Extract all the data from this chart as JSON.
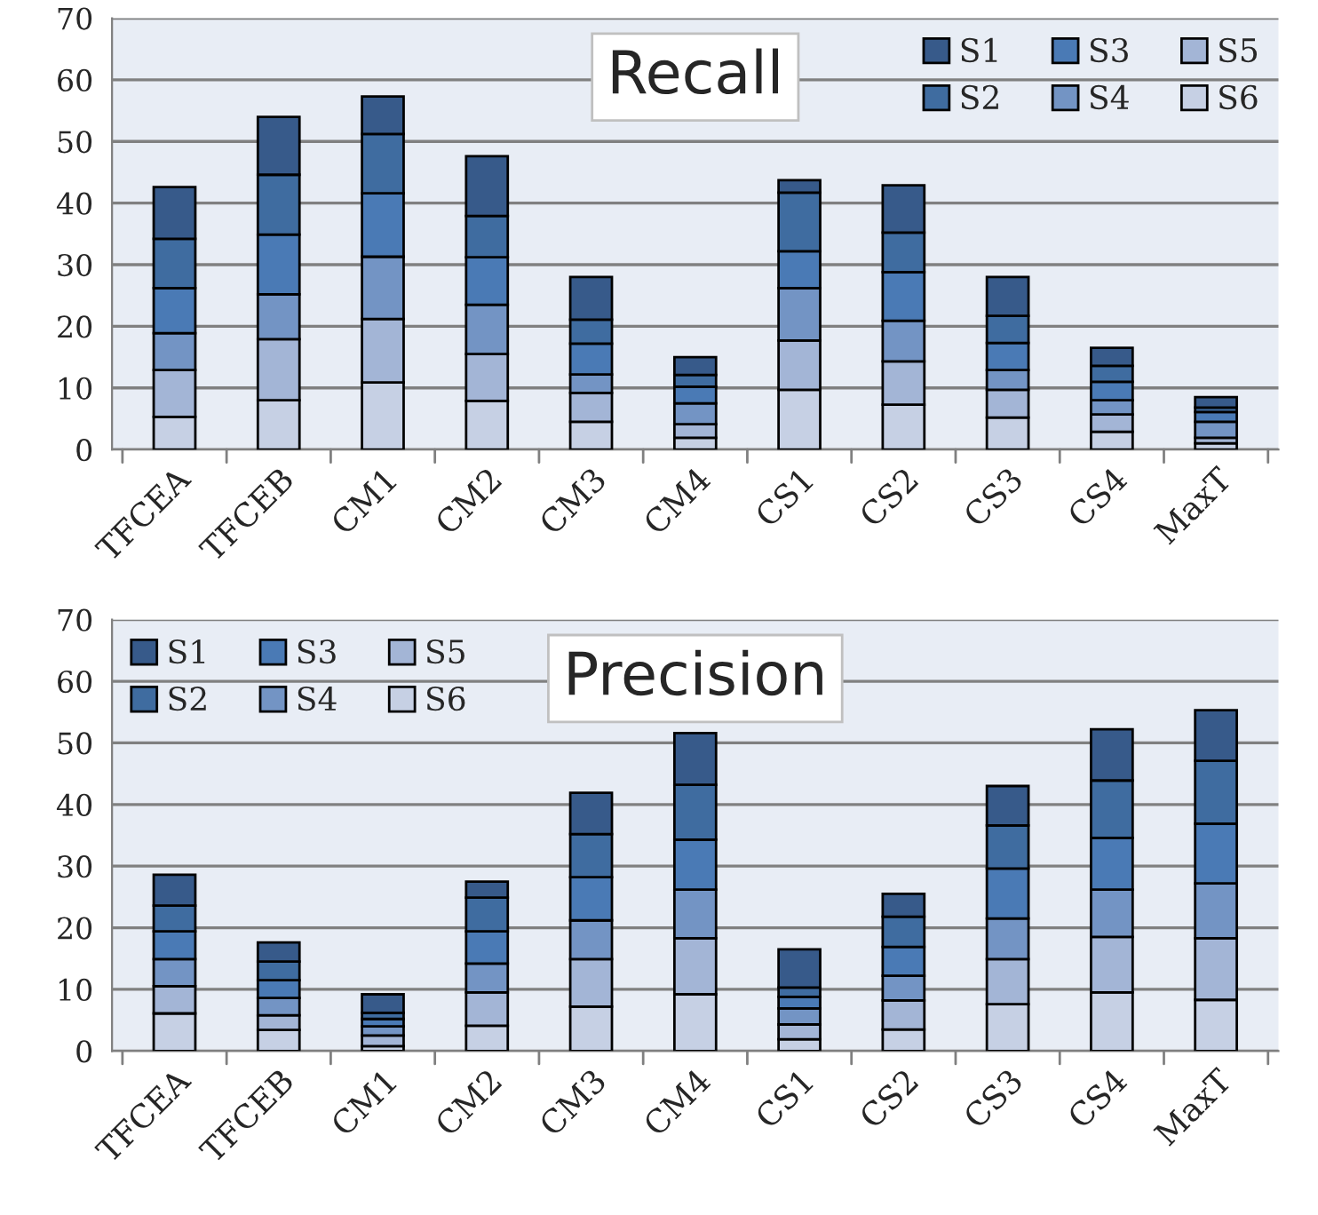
{
  "chart_data": [
    {
      "type": "bar",
      "title": "Recall",
      "stacked": true,
      "legend": "top right",
      "grid": "y",
      "categories": [
        "TFCEA",
        "TFCEB",
        "CM1",
        "CM2",
        "CM3",
        "CM4",
        "CS1",
        "CS2",
        "CS3",
        "CS4",
        "MaxT"
      ],
      "ylim": [
        0,
        70
      ],
      "yticks": [
        0,
        10,
        20,
        30,
        40,
        50,
        60,
        70
      ],
      "series": [
        {
          "name": "S6",
          "color": "#c6d0e4",
          "values": [
            5.3,
            8.0,
            10.9,
            7.9,
            4.5,
            1.9,
            9.7,
            7.3,
            5.2,
            2.9,
            1.0
          ]
        },
        {
          "name": "S5",
          "color": "#a3b5d6",
          "values": [
            7.6,
            9.9,
            10.3,
            7.6,
            4.7,
            2.2,
            8.0,
            7.0,
            4.5,
            2.8,
            0.9
          ]
        },
        {
          "name": "S4",
          "color": "#7394c4",
          "values": [
            6.0,
            7.3,
            10.1,
            8.0,
            3.0,
            3.4,
            8.5,
            6.6,
            3.2,
            2.3,
            2.6
          ]
        },
        {
          "name": "S3",
          "color": "#4a7ab5",
          "values": [
            7.3,
            9.7,
            10.3,
            7.7,
            5.0,
            2.7,
            6.0,
            7.9,
            4.4,
            3.0,
            1.6
          ]
        },
        {
          "name": "S2",
          "color": "#3f6ca0",
          "values": [
            8.0,
            9.7,
            9.6,
            6.7,
            3.9,
            1.9,
            9.5,
            6.4,
            4.4,
            2.6,
            0.7
          ]
        },
        {
          "name": "S1",
          "color": "#375a8a",
          "values": [
            8.4,
            9.4,
            6.1,
            9.7,
            6.9,
            2.9,
            2.0,
            7.7,
            6.3,
            2.9,
            1.7
          ]
        }
      ]
    },
    {
      "type": "bar",
      "title": "Precision",
      "stacked": true,
      "legend": "top left",
      "grid": "y",
      "categories": [
        "TFCEA",
        "TFCEB",
        "CM1",
        "CM2",
        "CM3",
        "CM4",
        "CS1",
        "CS2",
        "CS3",
        "CS4",
        "MaxT"
      ],
      "ylim": [
        0,
        70
      ],
      "yticks": [
        0,
        10,
        20,
        30,
        40,
        50,
        60,
        70
      ],
      "series": [
        {
          "name": "S6",
          "color": "#c6d0e4",
          "values": [
            6.1,
            3.4,
            0.8,
            4.1,
            7.2,
            9.2,
            1.9,
            3.5,
            7.6,
            9.5,
            8.3
          ]
        },
        {
          "name": "S5",
          "color": "#a3b5d6",
          "values": [
            4.4,
            2.4,
            1.7,
            5.4,
            7.7,
            9.1,
            2.4,
            4.7,
            7.3,
            9.0,
            10.0
          ]
        },
        {
          "name": "S4",
          "color": "#7394c4",
          "values": [
            4.4,
            2.8,
            1.5,
            4.7,
            6.3,
            7.9,
            2.6,
            4.0,
            6.6,
            7.7,
            8.9
          ]
        },
        {
          "name": "S3",
          "color": "#4a7ab5",
          "values": [
            4.5,
            2.9,
            1.2,
            5.2,
            7.0,
            8.1,
            1.9,
            4.7,
            8.1,
            8.4,
            9.7
          ]
        },
        {
          "name": "S2",
          "color": "#3f6ca0",
          "values": [
            4.2,
            3.0,
            1.0,
            5.5,
            7.0,
            8.9,
            1.5,
            4.9,
            7.0,
            9.3,
            10.2
          ]
        },
        {
          "name": "S1",
          "color": "#375a8a",
          "values": [
            5.0,
            3.1,
            3.0,
            2.6,
            6.7,
            8.4,
            6.2,
            3.7,
            6.4,
            8.3,
            8.2
          ]
        }
      ]
    }
  ]
}
